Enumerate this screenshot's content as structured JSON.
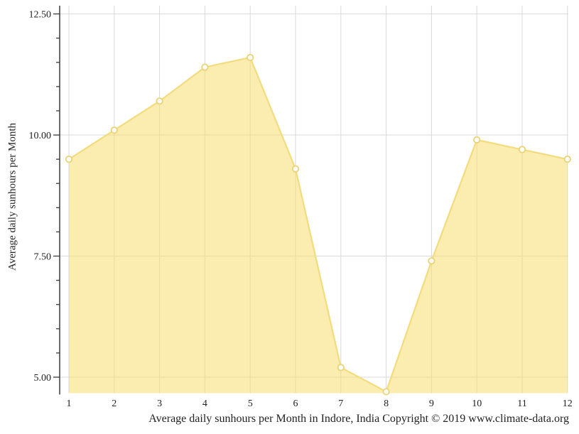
{
  "chart_data": {
    "type": "area",
    "title": "",
    "xlabel": "Average daily sunhours per Month in Indore, India Copyright © 2019 www.climate-data.org",
    "ylabel": "Average daily sunhours per Month",
    "categories": [
      "1",
      "2",
      "3",
      "4",
      "5",
      "6",
      "7",
      "8",
      "9",
      "10",
      "11",
      "12"
    ],
    "series": [
      {
        "name": "Average daily sunhours",
        "values": [
          9.5,
          10.1,
          10.7,
          11.4,
          11.6,
          9.3,
          5.2,
          4.7,
          7.4,
          9.9,
          9.7,
          9.5
        ]
      }
    ],
    "ylim": [
      4.67,
      12.67
    ],
    "y_major_ticks": [
      5.0,
      7.5,
      10.0,
      12.5
    ],
    "y_tick_labels": [
      "5.00",
      "7.50",
      "10.00",
      "12.50"
    ],
    "y_minor_step": 0.5,
    "grid": "on",
    "legend_position": "none",
    "colors": {
      "area_fill": "#F5DE6E",
      "area_fill_opacity": "0.55",
      "line": "#F2DC7D",
      "marker_fill": "#FFFFFF",
      "marker_stroke": "#EBD275",
      "gridline": "#D9D9D9",
      "axis": "#3B3B3B",
      "text": "#222222"
    }
  }
}
